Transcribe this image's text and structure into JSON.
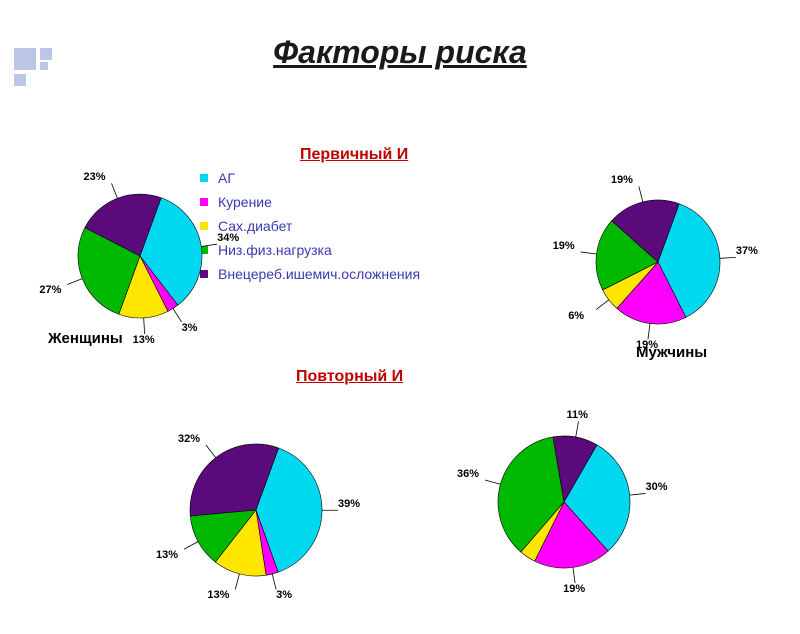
{
  "title": {
    "text": "Факторы риска",
    "fontsize": 32
  },
  "section1": {
    "text": "Первичный И",
    "color": "#c00000",
    "fontsize": 16
  },
  "section2": {
    "text": "Повторный И",
    "color": "#c00000",
    "fontsize": 16
  },
  "label_women": {
    "text": "Женщины",
    "fontsize": 15
  },
  "label_men": {
    "text": "Мужчины",
    "fontsize": 15
  },
  "legend": {
    "items": [
      {
        "label": "АГ",
        "color": "#00d8ef"
      },
      {
        "label": "Курение",
        "color": "#ff00ff"
      },
      {
        "label": "Сах.диабет",
        "color": "#ffe600"
      },
      {
        "label": "Низ.физ.нагрузка",
        "color": "#00b800"
      },
      {
        "label": "Внецереб.ишемич.осложнения",
        "color": "#5a0a7a"
      }
    ],
    "fontsize": 14,
    "text_color": "#3a3ab0"
  },
  "colors": {
    "c1": "#00d8ef",
    "c2": "#ff00ff",
    "c3": "#ffe600",
    "c4": "#00b800",
    "c5": "#5a0a7a",
    "label_text": "#000000",
    "leader": "#000000"
  },
  "corner": {
    "color": "#bcc6e6"
  },
  "pies": {
    "tl": {
      "type": "pie",
      "radius": 62,
      "slices": [
        {
          "v": 34,
          "label": "34%"
        },
        {
          "v": 3,
          "label": "3%"
        },
        {
          "v": 13,
          "label": "13%"
        },
        {
          "v": 27,
          "label": "27%"
        },
        {
          "v": 23,
          "label": "23%"
        }
      ]
    },
    "tr": {
      "type": "pie",
      "radius": 62,
      "slices": [
        {
          "v": 37,
          "label": "37%"
        },
        {
          "v": 19,
          "label": "19%"
        },
        {
          "v": 6,
          "label": "6%"
        },
        {
          "v": 19,
          "label": "19%"
        },
        {
          "v": 19,
          "label": "19%"
        }
      ]
    },
    "bl": {
      "type": "pie",
      "radius": 66,
      "slices": [
        {
          "v": 39,
          "label": "39%"
        },
        {
          "v": 3,
          "label": "3%"
        },
        {
          "v": 13,
          "label": "13%"
        },
        {
          "v": 13,
          "label": "13%"
        },
        {
          "v": 32,
          "label": "32%"
        }
      ]
    },
    "br": {
      "type": "pie",
      "radius": 66,
      "slices": [
        {
          "v": 30,
          "label": "30%"
        },
        {
          "v": 19,
          "label": "19%"
        },
        {
          "v": 4,
          "label": ""
        },
        {
          "v": 36,
          "label": "36%"
        },
        {
          "v": 11,
          "label": "11%"
        }
      ]
    }
  }
}
